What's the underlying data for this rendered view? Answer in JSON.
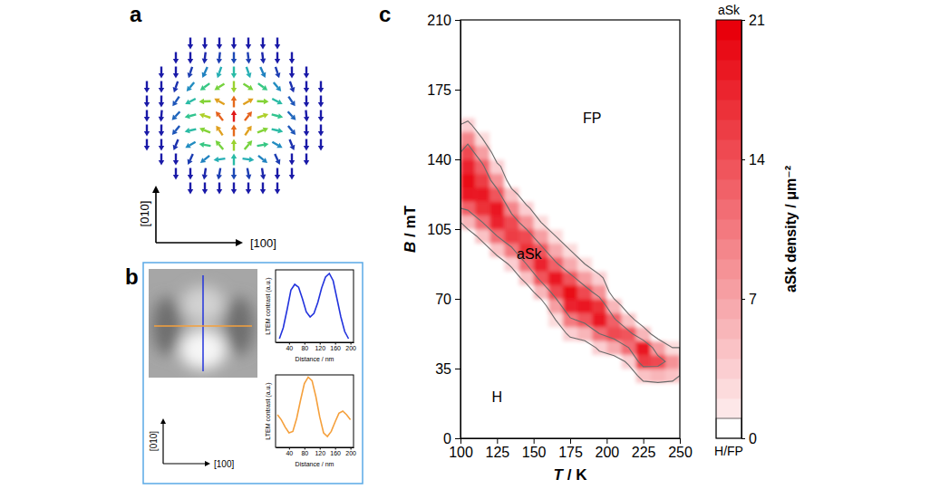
{
  "panels": [
    "a",
    "b",
    "c"
  ],
  "spin_texture": {
    "axes": {
      "x": "[100]",
      "y": "[010]"
    }
  },
  "ltem_image": {
    "axes": {
      "x": "[100]",
      "y": "[010]"
    }
  },
  "chart_data": [
    {
      "type": "line",
      "xlabel": "Distance / nm",
      "ylabel": "LTEM contrast (a.u.)",
      "x": [
        15,
        25,
        35,
        45,
        55,
        65,
        75,
        85,
        95,
        105,
        115,
        125,
        135,
        145,
        155,
        165,
        175,
        185,
        195
      ],
      "series": [
        {
          "color": "#2233dd",
          "values": [
            0.05,
            0.2,
            0.45,
            0.72,
            0.8,
            0.76,
            0.6,
            0.42,
            0.35,
            0.4,
            0.55,
            0.75,
            0.9,
            0.95,
            0.85,
            0.6,
            0.35,
            0.15,
            0.05
          ]
        }
      ],
      "xlim": [
        5,
        208
      ],
      "ylim": [
        0,
        1
      ],
      "xticks": [
        40,
        80,
        120,
        160,
        200
      ],
      "tick_labels": "x"
    },
    {
      "type": "line",
      "xlabel": "Distance / nm",
      "ylabel": "LTEM contrast (a.u.)",
      "x": [
        10,
        20,
        30,
        40,
        50,
        60,
        70,
        80,
        90,
        100,
        110,
        120,
        130,
        140,
        150,
        160,
        170,
        180,
        190,
        200
      ],
      "series": [
        {
          "color": "#f5a03c",
          "values": [
            0.45,
            0.38,
            0.28,
            0.2,
            0.22,
            0.4,
            0.65,
            0.88,
            0.97,
            0.92,
            0.7,
            0.42,
            0.2,
            0.15,
            0.22,
            0.35,
            0.47,
            0.5,
            0.45,
            0.38
          ]
        }
      ],
      "xlim": [
        5,
        208
      ],
      "ylim": [
        0,
        1
      ],
      "xticks": [
        40,
        80,
        120,
        160,
        200
      ],
      "tick_labels": "x"
    },
    {
      "type": "heatmap",
      "xlabel": "T / K",
      "ylabel": "B / mT",
      "xlim": [
        100,
        250
      ],
      "ylim": [
        0,
        210
      ],
      "xticks": [
        100,
        125,
        150,
        175,
        200,
        225,
        250
      ],
      "yticks": [
        0,
        35,
        70,
        105,
        140,
        175,
        210
      ],
      "x_bins": [
        100,
        110,
        120,
        130,
        140,
        150,
        160,
        170,
        180,
        190,
        200,
        210,
        220,
        230,
        240,
        250
      ],
      "y_bins": [
        0,
        7,
        14,
        21,
        28,
        35,
        42,
        49,
        56,
        63,
        70,
        77,
        84,
        91,
        98,
        105,
        112,
        119,
        126,
        133,
        140,
        147,
        154,
        161,
        168,
        175,
        182,
        189,
        196,
        203,
        210
      ],
      "z": [
        [
          0,
          0,
          0,
          0,
          0,
          0,
          0,
          0,
          0,
          0,
          0,
          0,
          0,
          0,
          0
        ],
        [
          0,
          0,
          0,
          0,
          0,
          0,
          0,
          0,
          0,
          0,
          0,
          0,
          0,
          0,
          0
        ],
        [
          0,
          0,
          0,
          0,
          0,
          0,
          0,
          0,
          0,
          0,
          0,
          0,
          0,
          0,
          0
        ],
        [
          0,
          0,
          0,
          0,
          0,
          0,
          0,
          0,
          0,
          0,
          0,
          0,
          0,
          0,
          0
        ],
        [
          0,
          0,
          0,
          0,
          0,
          0,
          0,
          0,
          0,
          0,
          0,
          0,
          5,
          6,
          5
        ],
        [
          0,
          0,
          0,
          0,
          0,
          0,
          0,
          0,
          0,
          0,
          0,
          4,
          16,
          15,
          9
        ],
        [
          0,
          0,
          0,
          0,
          0,
          0,
          0,
          0,
          0,
          4,
          7,
          12,
          19,
          8,
          3
        ],
        [
          0,
          0,
          0,
          0,
          0,
          0,
          0,
          4,
          6,
          12,
          15,
          14,
          6,
          0,
          0
        ],
        [
          0,
          0,
          0,
          0,
          0,
          0,
          3,
          11,
          14,
          19,
          13,
          5,
          0,
          0,
          0
        ],
        [
          0,
          0,
          0,
          0,
          0,
          0,
          8,
          18,
          19,
          17,
          6,
          0,
          0,
          0,
          0
        ],
        [
          0,
          0,
          0,
          0,
          0,
          6,
          15,
          20,
          15,
          9,
          0,
          0,
          0,
          0,
          0
        ],
        [
          0,
          0,
          0,
          0,
          5,
          14,
          19,
          14,
          8,
          4,
          0,
          0,
          0,
          0,
          0
        ],
        [
          0,
          0,
          0,
          4,
          12,
          18,
          13,
          7,
          3,
          0,
          0,
          0,
          0,
          0,
          0
        ],
        [
          0,
          0,
          5,
          11,
          17,
          14,
          7,
          3,
          0,
          0,
          0,
          0,
          0,
          0,
          0
        ],
        [
          0,
          5,
          12,
          16,
          15,
          8,
          3,
          0,
          0,
          0,
          0,
          0,
          0,
          0,
          0
        ],
        [
          6,
          12,
          18,
          15,
          9,
          3,
          0,
          0,
          0,
          0,
          0,
          0,
          0,
          0,
          0
        ],
        [
          13,
          17,
          19,
          10,
          4,
          0,
          0,
          0,
          0,
          0,
          0,
          0,
          0,
          0,
          0
        ],
        [
          19,
          19,
          14,
          5,
          0,
          0,
          0,
          0,
          0,
          0,
          0,
          0,
          0,
          0,
          0
        ],
        [
          20,
          16,
          9,
          0,
          0,
          0,
          0,
          0,
          0,
          0,
          0,
          0,
          0,
          0,
          0
        ],
        [
          18,
          13,
          4,
          0,
          0,
          0,
          0,
          0,
          0,
          0,
          0,
          0,
          0,
          0,
          0
        ],
        [
          15,
          8,
          0,
          0,
          0,
          0,
          0,
          0,
          0,
          0,
          0,
          0,
          0,
          0,
          0
        ],
        [
          10,
          3,
          0,
          0,
          0,
          0,
          0,
          0,
          0,
          0,
          0,
          0,
          0,
          0,
          0
        ],
        [
          4,
          0,
          0,
          0,
          0,
          0,
          0,
          0,
          0,
          0,
          0,
          0,
          0,
          0,
          0
        ],
        [
          0,
          0,
          0,
          0,
          0,
          0,
          0,
          0,
          0,
          0,
          0,
          0,
          0,
          0,
          0
        ],
        [
          0,
          0,
          0,
          0,
          0,
          0,
          0,
          0,
          0,
          0,
          0,
          0,
          0,
          0,
          0
        ],
        [
          0,
          0,
          0,
          0,
          0,
          0,
          0,
          0,
          0,
          0,
          0,
          0,
          0,
          0,
          0
        ],
        [
          0,
          0,
          0,
          0,
          0,
          0,
          0,
          0,
          0,
          0,
          0,
          0,
          0,
          0,
          0
        ],
        [
          0,
          0,
          0,
          0,
          0,
          0,
          0,
          0,
          0,
          0,
          0,
          0,
          0,
          0,
          0
        ],
        [
          0,
          0,
          0,
          0,
          0,
          0,
          0,
          0,
          0,
          0,
          0,
          0,
          0,
          0,
          0
        ],
        [
          0,
          0,
          0,
          0,
          0,
          0,
          0,
          0,
          0,
          0,
          0,
          0,
          0,
          0,
          0
        ]
      ],
      "color": "#e8000b",
      "contour_levels": [
        3,
        12
      ],
      "colorbar": {
        "title": "aSk density / μm⁻²",
        "range": [
          0,
          21
        ],
        "ticks": [
          0,
          7,
          14,
          21
        ],
        "top_label": "aSk",
        "bottom_label": "H/FP"
      },
      "annotations": [
        {
          "text": "FP",
          "x": 190,
          "y": 160
        },
        {
          "text": "aSk",
          "x": 147,
          "y": 92
        },
        {
          "text": "H",
          "x": 125,
          "y": 20
        }
      ]
    }
  ]
}
